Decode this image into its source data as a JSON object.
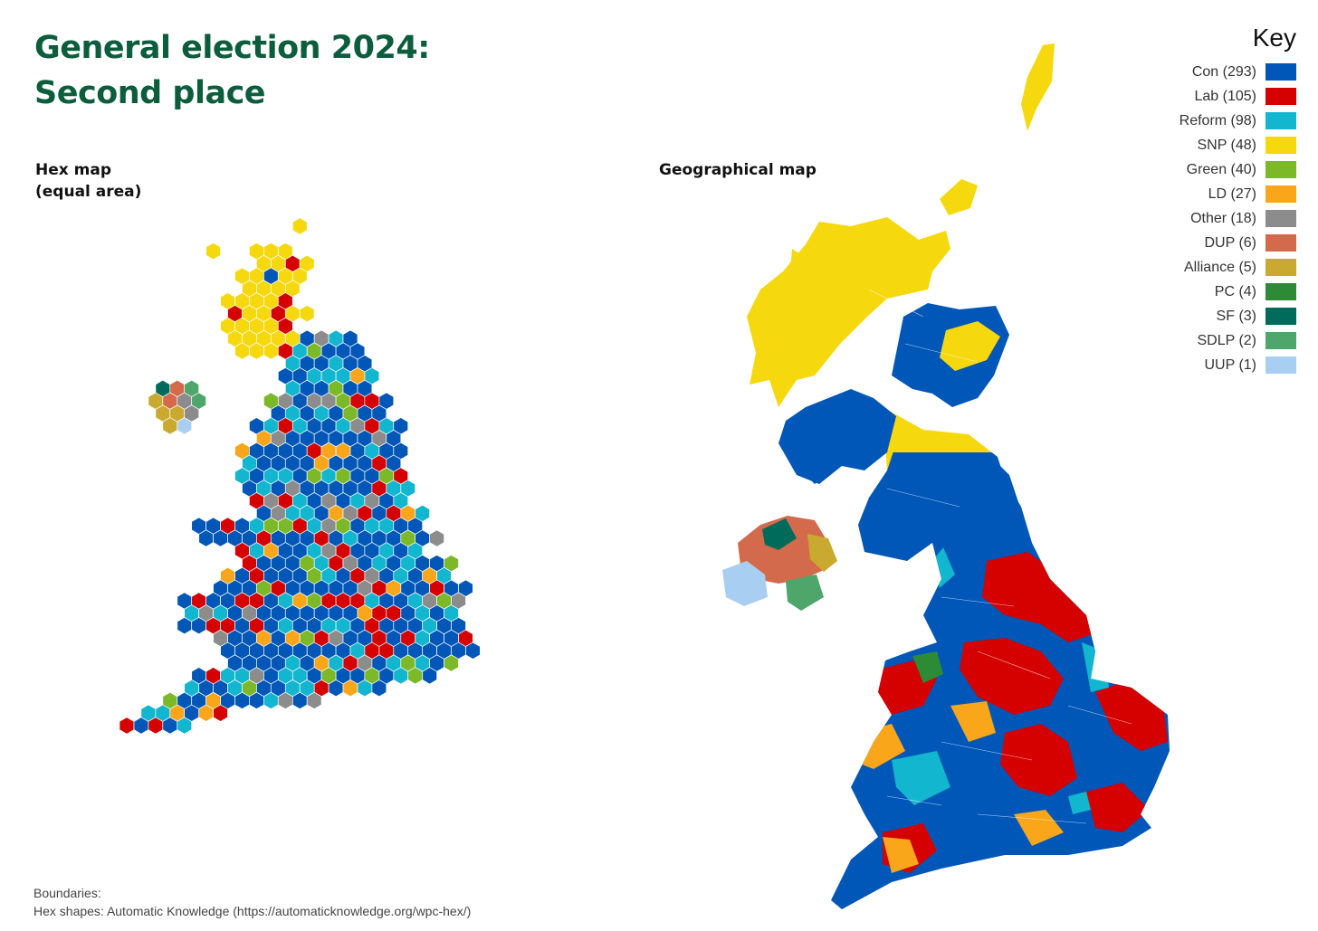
{
  "title": {
    "line1": "General election 2024:",
    "line2": "Second place"
  },
  "maps": {
    "hex": {
      "label1": "Hex map",
      "label2": "(equal area)"
    },
    "geo": {
      "label1": "Geographical map"
    }
  },
  "key": {
    "title": "Key",
    "items": [
      {
        "label": "Con (293)",
        "party": "Con",
        "count": 293,
        "color": "#0057b8"
      },
      {
        "label": "Lab (105)",
        "party": "Lab",
        "count": 105,
        "color": "#d50000"
      },
      {
        "label": "Reform (98)",
        "party": "Reform",
        "count": 98,
        "color": "#12b6cf"
      },
      {
        "label": "SNP (48)",
        "party": "SNP",
        "count": 48,
        "color": "#f6d80f"
      },
      {
        "label": "Green (40)",
        "party": "Green",
        "count": 40,
        "color": "#7cb929"
      },
      {
        "label": "LD (27)",
        "party": "LD",
        "count": 27,
        "color": "#faa61a"
      },
      {
        "label": "Other (18)",
        "party": "Other",
        "count": 18,
        "color": "#8c8c8c"
      },
      {
        "label": "DUP (6)",
        "party": "DUP",
        "count": 6,
        "color": "#d46a4c"
      },
      {
        "label": "Alliance (5)",
        "party": "Alliance",
        "count": 5,
        "color": "#c9a92f"
      },
      {
        "label": "PC (4)",
        "party": "PC",
        "count": 4,
        "color": "#2e8b35"
      },
      {
        "label": "SF (3)",
        "party": "SF",
        "count": 3,
        "color": "#006b5b"
      },
      {
        "label": "SDLP (2)",
        "party": "SDLP",
        "count": 2,
        "color": "#4ea66a"
      },
      {
        "label": "UUP (1)",
        "party": "UUP",
        "count": 1,
        "color": "#a8cff2"
      }
    ]
  },
  "credits": {
    "line1": "Boundaries:",
    "line2": "Hex shapes: Automatic Knowledge (https://automaticknowledge.org/wpc-hex/)"
  }
}
